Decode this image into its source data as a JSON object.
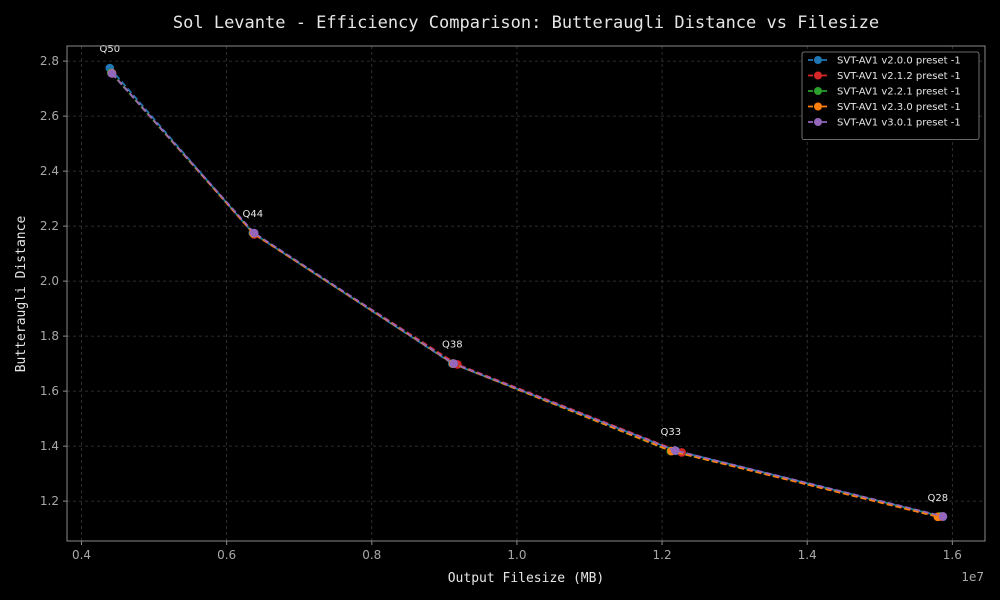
{
  "chart_data": {
    "type": "line",
    "title": "Sol Levante - Efficiency Comparison: Butteraugli Distance vs Filesize",
    "xlabel": "Output Filesize (MB)",
    "ylabel": "Butteraugli Distance",
    "x_offset_label": "1e7",
    "xlim": [
      0.38,
      1.645
    ],
    "ylim": [
      1.055,
      2.855
    ],
    "x_ticks": [
      {
        "value": 0.4,
        "label": "0.4"
      },
      {
        "value": 0.6,
        "label": "0.6"
      },
      {
        "value": 0.8,
        "label": "0.8"
      },
      {
        "value": 1.0,
        "label": "1.0"
      },
      {
        "value": 1.2,
        "label": "1.2"
      },
      {
        "value": 1.4,
        "label": "1.4"
      },
      {
        "value": 1.6,
        "label": "1.6"
      }
    ],
    "y_ticks": [
      {
        "value": 1.2,
        "label": "1.2"
      },
      {
        "value": 1.4,
        "label": "1.4"
      },
      {
        "value": 1.6,
        "label": "1.6"
      },
      {
        "value": 1.8,
        "label": "1.8"
      },
      {
        "value": 2.0,
        "label": "2.0"
      },
      {
        "value": 2.2,
        "label": "2.2"
      },
      {
        "value": 2.4,
        "label": "2.4"
      },
      {
        "value": 2.6,
        "label": "2.6"
      },
      {
        "value": 2.8,
        "label": "2.8"
      }
    ],
    "grid": true,
    "legend_position": "top-right",
    "series": [
      {
        "name": "SVT-AV1 v2.0.0 preset -1",
        "color": "#1f77b4",
        "x": [
          0.439,
          0.636,
          0.911,
          1.219,
          1.587
        ],
        "y": [
          2.775,
          2.175,
          1.7,
          1.383,
          1.143
        ]
      },
      {
        "name": "SVT-AV1 v2.1.2 preset -1",
        "color": "#d62728",
        "x": [
          0.442,
          0.638,
          0.918,
          1.227,
          1.585
        ],
        "y": [
          2.755,
          2.17,
          1.697,
          1.377,
          1.143
        ]
      },
      {
        "name": "SVT-AV1 v2.2.1 preset -1",
        "color": "#2ca02c",
        "x": [
          0.441,
          0.637,
          0.912,
          1.212,
          1.583
        ],
        "y": [
          2.757,
          2.173,
          1.7,
          1.382,
          1.145
        ]
      },
      {
        "name": "SVT-AV1 v2.3.0 preset -1",
        "color": "#ff7f0e",
        "x": [
          0.442,
          0.637,
          0.912,
          1.213,
          1.58
        ],
        "y": [
          2.756,
          2.173,
          1.7,
          1.382,
          1.143
        ]
      },
      {
        "name": "SVT-AV1 v3.0.1 preset -1",
        "color": "#9467bd",
        "x": [
          0.442,
          0.638,
          0.913,
          1.218,
          1.587
        ],
        "y": [
          2.755,
          2.175,
          1.7,
          1.384,
          1.145
        ]
      }
    ],
    "annotations": [
      {
        "text": "Q50",
        "x": 0.439,
        "y": 2.775
      },
      {
        "text": "Q44",
        "x": 0.636,
        "y": 2.175
      },
      {
        "text": "Q38",
        "x": 0.911,
        "y": 1.7
      },
      {
        "text": "Q33",
        "x": 1.212,
        "y": 1.382
      },
      {
        "text": "Q28",
        "x": 1.58,
        "y": 1.143
      }
    ]
  }
}
